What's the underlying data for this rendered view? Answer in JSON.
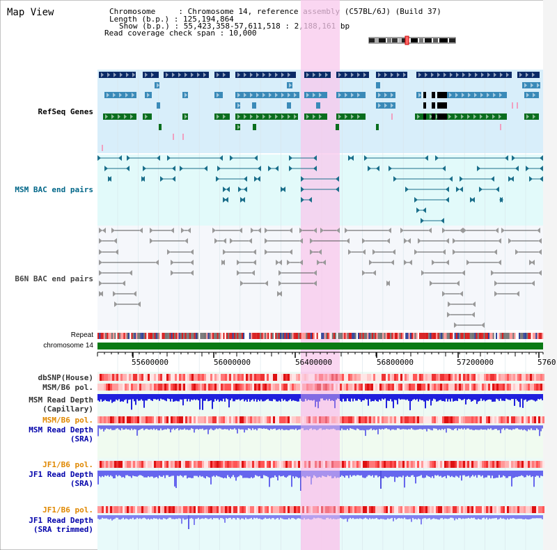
{
  "page": {
    "title": "Map View"
  },
  "header": {
    "lines": [
      "Chromosome     : Chromosome 14, reference assembly (C57BL/6J) (Build 37)",
      "Length (b.p.) : 125,194,864",
      "Show (b.p.) : 55,423,358-57,611,518 : 2,188,161 bp",
      "Read coverage check span : 10,000"
    ]
  },
  "tracks": {
    "refseq": {
      "label": "RefSeq Genes",
      "color": "#0000aa"
    },
    "msm_bac": {
      "label": "MSM BAC end pairs",
      "color": "#006688"
    },
    "b6n_bac": {
      "label": "B6N BAC end pairs",
      "color": "#444444"
    },
    "repeat": {
      "label": "Repeat"
    },
    "chromosome": {
      "label": "chromosome 14"
    }
  },
  "axis": {
    "ticks": [
      "55600000",
      "56000000",
      "56400000",
      "56800000",
      "57200000",
      "5760"
    ]
  },
  "lower_tracks": [
    {
      "id": "dbsnp",
      "label": "dbSNP(House)",
      "color": "#333333"
    },
    {
      "id": "msm_b6_pol1",
      "label": "MSM/B6 pol.",
      "color": "#333333"
    },
    {
      "id": "msm_rd_cap",
      "label": "MSM Read Depth\n(Capillary)",
      "color": "#333333"
    },
    {
      "id": "msm_b6_pol2",
      "label": "MSM/B6 pol.",
      "color": "#e08800"
    },
    {
      "id": "msm_rd_sra",
      "label": "MSM Read Depth\n(SRA)",
      "color": "#0000aa"
    },
    {
      "id": "jf1_b6_pol1",
      "label": "JF1/B6 pol.",
      "color": "#e08800"
    },
    {
      "id": "jf1_rd_sra",
      "label": "JF1 Read Depth\n(SRA)",
      "color": "#0000aa"
    },
    {
      "id": "jf1_b6_pol2",
      "label": "JF1/B6 pol.",
      "color": "#e08800"
    },
    {
      "id": "jf1_rd_trim",
      "label": "JF1 Read Depth\n(SRA trimmed)",
      "color": "#0000aa"
    }
  ],
  "colors": {
    "highlight": "#f8c8ec",
    "refseq_bg": "#d8eefa",
    "msm_bg": "#e2fafa",
    "gene_dark": "#0a2a66",
    "gene_mid": "#3a8ab8",
    "gene_green": "#0a6e1e",
    "chrom_green": "#0a7a14"
  }
}
